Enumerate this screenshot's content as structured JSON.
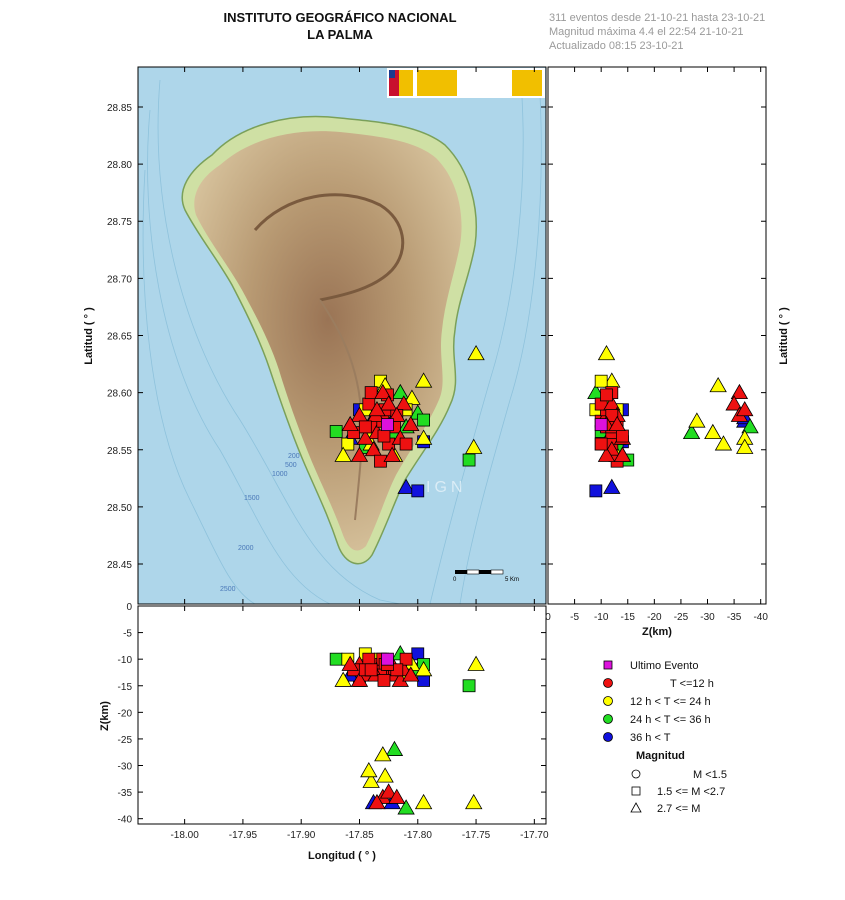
{
  "header": {
    "institute": "INSTITUTO GEOGRÁFICO NACIONAL",
    "region": "LA PALMA",
    "events_summary": "311 eventos desde 21-10-21 hasta 23-10-21",
    "max_magnitude": "Magnitud máxima 4.4 el 22:54 21-10-21",
    "updated": "Actualizado   08:15  23-10-21"
  },
  "map": {
    "watermark": "IGN",
    "scale_label_start": "0",
    "scale_label_end": "5 Km",
    "contours": [
      "200",
      "500",
      "1000",
      "1500",
      "2000",
      "2500"
    ],
    "colors": {
      "sea": "#a9d4ea",
      "land": "#d9c29a",
      "ridge": "#a88664"
    }
  },
  "axes": {
    "latitude_label": "Latitud ( ° )",
    "longitude_label": "Longitud ( ° )",
    "depth_label": "Z(km)",
    "depth_label_side": "Z(km)",
    "lat_ticks": [
      "28.85",
      "28.80",
      "28.75",
      "28.70",
      "28.65",
      "28.60",
      "28.55",
      "28.50",
      "28.45"
    ],
    "lon_ticks": [
      "-18.00",
      "-17.95",
      "-17.90",
      "-17.85",
      "-17.80",
      "-17.75",
      "-17.70"
    ],
    "depth_ticks_v": [
      "0",
      "-5",
      "-10",
      "-15",
      "-20",
      "-25",
      "-30",
      "-35",
      "-40"
    ],
    "depth_ticks_h": [
      "0",
      "-5",
      "-10",
      "-15",
      "-20",
      "-25",
      "-30",
      "-35",
      "-40"
    ]
  },
  "legend": {
    "title_time": "",
    "items": [
      {
        "label": "Ultimo Evento",
        "color": "#dd11dd",
        "shape": "square"
      },
      {
        "label": "T <=12 h",
        "color": "#ee1111",
        "shape": "circle"
      },
      {
        "label": "12 h  < T <= 24 h",
        "color": "#ffff00",
        "shape": "circle"
      },
      {
        "label": "24 h  < T <= 36 h",
        "color": "#22dd22",
        "shape": "circle"
      },
      {
        "label": "36 h <  T",
        "color": "#1111dd",
        "shape": "circle"
      }
    ],
    "magnitude_title": "Magnitud",
    "magnitude_items": [
      {
        "label": "M <1.5",
        "shape": "circle"
      },
      {
        "label": "1.5 <= M <2.7",
        "shape": "square"
      },
      {
        "label": "2.7 <= M",
        "shape": "triangle"
      }
    ]
  },
  "chart_data": {
    "type": "scatter",
    "lon_range": [
      -18.04,
      -17.69
    ],
    "lat_range": [
      28.415,
      28.885
    ],
    "depth_range": [
      0,
      -41
    ],
    "events": [
      {
        "lon": -17.84,
        "lat": 28.57,
        "depth": -11,
        "shape": "square",
        "color": "red"
      },
      {
        "lon": -17.835,
        "lat": 28.565,
        "depth": -12,
        "shape": "triangle",
        "color": "red"
      },
      {
        "lon": -17.83,
        "lat": 28.575,
        "depth": -10,
        "shape": "square",
        "color": "red"
      },
      {
        "lon": -17.845,
        "lat": 28.56,
        "depth": -13,
        "shape": "triangle",
        "color": "red"
      },
      {
        "lon": -17.825,
        "lat": 28.555,
        "depth": -12,
        "shape": "square",
        "color": "red"
      },
      {
        "lon": -17.85,
        "lat": 28.58,
        "depth": -11,
        "shape": "triangle",
        "color": "red"
      },
      {
        "lon": -17.82,
        "lat": 28.57,
        "depth": -13,
        "shape": "square",
        "color": "red"
      },
      {
        "lon": -17.838,
        "lat": 28.55,
        "depth": -12,
        "shape": "triangle",
        "color": "red"
      },
      {
        "lon": -17.828,
        "lat": 28.585,
        "depth": -11,
        "shape": "square",
        "color": "red"
      },
      {
        "lon": -17.842,
        "lat": 28.59,
        "depth": -10,
        "shape": "square",
        "color": "red"
      },
      {
        "lon": -17.815,
        "lat": 28.56,
        "depth": -14,
        "shape": "triangle",
        "color": "red"
      },
      {
        "lon": -17.855,
        "lat": 28.565,
        "depth": -12,
        "shape": "square",
        "color": "red"
      },
      {
        "lon": -17.832,
        "lat": 28.54,
        "depth": -13,
        "shape": "square",
        "color": "red"
      },
      {
        "lon": -17.812,
        "lat": 28.59,
        "depth": -12,
        "shape": "triangle",
        "color": "red"
      },
      {
        "lon": -17.822,
        "lat": 28.545,
        "depth": -11,
        "shape": "triangle",
        "color": "red"
      },
      {
        "lon": -17.81,
        "lat": 28.555,
        "depth": -10,
        "shape": "square",
        "color": "red"
      },
      {
        "lon": -17.85,
        "lat": 28.545,
        "depth": -14,
        "shape": "triangle",
        "color": "red"
      },
      {
        "lon": -17.836,
        "lat": 28.58,
        "depth": -13,
        "shape": "triangle",
        "color": "red"
      },
      {
        "lon": -17.845,
        "lat": 28.57,
        "depth": -12,
        "shape": "square",
        "color": "red"
      },
      {
        "lon": -17.818,
        "lat": 28.58,
        "depth": -12,
        "shape": "square",
        "color": "red"
      },
      {
        "lon": -17.829,
        "lat": 28.562,
        "depth": -14,
        "shape": "square",
        "color": "red"
      },
      {
        "lon": -17.858,
        "lat": 28.572,
        "depth": -11,
        "shape": "triangle",
        "color": "red"
      },
      {
        "lon": -17.806,
        "lat": 28.572,
        "depth": -13,
        "shape": "triangle",
        "color": "red"
      },
      {
        "lon": -17.84,
        "lat": 28.6,
        "depth": -12,
        "shape": "square",
        "color": "red"
      },
      {
        "lon": -17.826,
        "lat": 28.598,
        "depth": -11,
        "shape": "square",
        "color": "red"
      },
      {
        "lon": -17.86,
        "lat": 28.555,
        "depth": -10,
        "shape": "square",
        "color": "yellow"
      },
      {
        "lon": -17.805,
        "lat": 28.595,
        "depth": -11,
        "shape": "triangle",
        "color": "yellow"
      },
      {
        "lon": -17.845,
        "lat": 28.585,
        "depth": -9,
        "shape": "square",
        "color": "yellow"
      },
      {
        "lon": -17.82,
        "lat": 28.545,
        "depth": -13,
        "shape": "triangle",
        "color": "yellow"
      },
      {
        "lon": -17.795,
        "lat": 28.61,
        "depth": -12,
        "shape": "triangle",
        "color": "yellow"
      },
      {
        "lon": -17.75,
        "lat": 28.634,
        "depth": -11,
        "shape": "triangle",
        "color": "yellow"
      },
      {
        "lon": -17.864,
        "lat": 28.545,
        "depth": -14,
        "shape": "triangle",
        "color": "yellow"
      },
      {
        "lon": -17.81,
        "lat": 28.585,
        "depth": -13,
        "shape": "square",
        "color": "yellow"
      },
      {
        "lon": -17.832,
        "lat": 28.61,
        "depth": -10,
        "shape": "square",
        "color": "yellow"
      },
      {
        "lon": -17.87,
        "lat": 28.566,
        "depth": -10,
        "shape": "square",
        "color": "green"
      },
      {
        "lon": -17.8,
        "lat": 28.582,
        "depth": -12,
        "shape": "triangle",
        "color": "green"
      },
      {
        "lon": -17.795,
        "lat": 28.576,
        "depth": -11,
        "shape": "square",
        "color": "green"
      },
      {
        "lon": -17.756,
        "lat": 28.541,
        "depth": -15,
        "shape": "square",
        "color": "green"
      },
      {
        "lon": -17.845,
        "lat": 28.552,
        "depth": -13,
        "shape": "square",
        "color": "green"
      },
      {
        "lon": -17.815,
        "lat": 28.6,
        "depth": -9,
        "shape": "triangle",
        "color": "green"
      },
      {
        "lon": -17.85,
        "lat": 28.585,
        "depth": -14,
        "shape": "square",
        "color": "blue"
      },
      {
        "lon": -17.795,
        "lat": 28.557,
        "depth": -14,
        "shape": "square",
        "color": "blue"
      },
      {
        "lon": -17.81,
        "lat": 28.517,
        "depth": -12,
        "shape": "triangle",
        "color": "blue"
      },
      {
        "lon": -17.8,
        "lat": 28.514,
        "depth": -9,
        "shape": "square",
        "color": "blue"
      },
      {
        "lon": -17.858,
        "lat": 28.56,
        "depth": -13,
        "shape": "triangle",
        "color": "blue"
      },
      {
        "lon": -17.826,
        "lat": 28.572,
        "depth": -10,
        "shape": "square",
        "color": "magenta"
      },
      {
        "lon": -17.83,
        "lat": 28.6,
        "depth": -36,
        "shape": "triangle",
        "color": "red"
      },
      {
        "lon": -17.825,
        "lat": 28.59,
        "depth": -35,
        "shape": "triangle",
        "color": "red"
      },
      {
        "lon": -17.818,
        "lat": 28.58,
        "depth": -36,
        "shape": "triangle",
        "color": "red"
      },
      {
        "lon": -17.835,
        "lat": 28.585,
        "depth": -37,
        "shape": "triangle",
        "color": "red"
      },
      {
        "lon": -17.822,
        "lat": 28.575,
        "depth": -37,
        "shape": "triangle",
        "color": "blue"
      },
      {
        "lon": -17.838,
        "lat": 28.578,
        "depth": -37,
        "shape": "triangle",
        "color": "blue"
      },
      {
        "lon": -17.82,
        "lat": 28.565,
        "depth": -27,
        "shape": "triangle",
        "color": "green"
      },
      {
        "lon": -17.83,
        "lat": 28.575,
        "depth": -28,
        "shape": "triangle",
        "color": "yellow"
      },
      {
        "lon": -17.84,
        "lat": 28.555,
        "depth": -33,
        "shape": "triangle",
        "color": "yellow"
      },
      {
        "lon": -17.842,
        "lat": 28.565,
        "depth": -31,
        "shape": "triangle",
        "color": "yellow"
      },
      {
        "lon": -17.828,
        "lat": 28.606,
        "depth": -32,
        "shape": "triangle",
        "color": "yellow"
      },
      {
        "lon": -17.795,
        "lat": 28.56,
        "depth": -37,
        "shape": "triangle",
        "color": "yellow"
      },
      {
        "lon": -17.752,
        "lat": 28.552,
        "depth": -37,
        "shape": "triangle",
        "color": "yellow"
      },
      {
        "lon": -17.81,
        "lat": 28.57,
        "depth": -38,
        "shape": "triangle",
        "color": "green"
      }
    ]
  }
}
